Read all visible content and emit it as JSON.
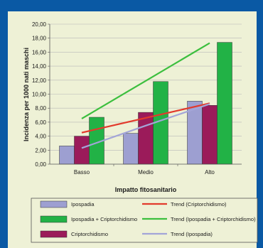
{
  "colors": {
    "border": "#0a59a4",
    "background": "#eef1d6",
    "ipospadia": "#9d9fd1",
    "ipo_cripto": "#22b246",
    "criptorchidismo": "#9b1b5a",
    "trend_cripto": "#e23a2c",
    "trend_ipo_cripto": "#3cbf3e",
    "trend_ipospadia": "#a3a5d8"
  },
  "chart_data": {
    "type": "bar",
    "title": "",
    "xlabel": "Impatto fitosanitario",
    "ylabel": "Incidenza per 1000 nati maschi",
    "categories": [
      "Basso",
      "Medio",
      "Alto"
    ],
    "ylim": [
      0,
      20
    ],
    "yticks": [
      "0,00",
      "2,00",
      "4,00",
      "6,00",
      "8,00",
      "10,00",
      "12,00",
      "14,00",
      "16,00",
      "18,00",
      "20,00"
    ],
    "grid": true,
    "series": [
      {
        "name": "Ipospadia",
        "type": "bar",
        "color": "#9d9fd1",
        "values": [
          2.6,
          4.4,
          9.0
        ]
      },
      {
        "name": "Criptorchidismo",
        "type": "bar",
        "color": "#9b1b5a",
        "values": [
          4.0,
          7.4,
          8.4
        ]
      },
      {
        "name": "Ipospadia + Criptorchidismo",
        "type": "bar",
        "color": "#22b246",
        "values": [
          6.7,
          11.8,
          17.4
        ]
      },
      {
        "name": "Trend (Criptorchidismo)",
        "type": "line",
        "color": "#e23a2c",
        "values": [
          4.5,
          6.6,
          8.7
        ]
      },
      {
        "name": "Trend (Ipospadia + Criptorchidismo)",
        "type": "line",
        "color": "#3cbf3e",
        "values": [
          6.5,
          11.9,
          17.3
        ]
      },
      {
        "name": "Trend (Ipospadia)",
        "type": "line",
        "color": "#a3a5d8",
        "values": [
          2.3,
          5.5,
          8.6
        ]
      }
    ],
    "legend": {
      "placement": "bottom",
      "entries": [
        {
          "label": "Ipospadia",
          "kind": "box",
          "color": "#9d9fd1"
        },
        {
          "label": "Trend (Criptorchidismo)",
          "kind": "line",
          "color": "#e23a2c"
        },
        {
          "label": "Ipospadia + Criptorchidismo",
          "kind": "box",
          "color": "#22b246"
        },
        {
          "label": "Trend (Ipospadia + Criptorchidismo)",
          "kind": "line",
          "color": "#3cbf3e"
        },
        {
          "label": "Criptorchidismo",
          "kind": "box",
          "color": "#9b1b5a"
        },
        {
          "label": "Trend (Ipospadia)",
          "kind": "line",
          "color": "#a3a5d8"
        }
      ]
    }
  }
}
